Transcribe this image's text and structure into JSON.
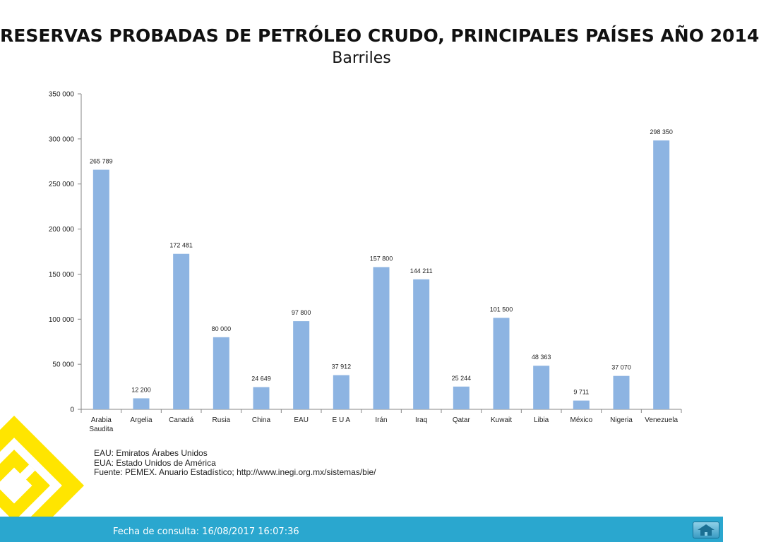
{
  "header": {
    "title": "RESERVAS PROBADAS DE PETRÓLEO CRUDO, PRINCIPALES PAÍSES AÑO 2014",
    "subtitle": "Barriles"
  },
  "chart_data": {
    "type": "bar",
    "categories": [
      "Arabia Saudita",
      "Argelia",
      "Canadá",
      "Rusia",
      "China",
      "EAU",
      "E U A",
      "Irán",
      "Iraq",
      "Qatar",
      "Kuwait",
      "Libia",
      "México",
      "Nigeria",
      "Venezuela"
    ],
    "category_lines": [
      [
        "Arabia",
        "Saudita"
      ],
      [
        "Argelia"
      ],
      [
        "Canadá"
      ],
      [
        "Rusia"
      ],
      [
        "China"
      ],
      [
        "EAU"
      ],
      [
        "E U A"
      ],
      [
        "Irán"
      ],
      [
        "Iraq"
      ],
      [
        "Qatar"
      ],
      [
        "Kuwait"
      ],
      [
        "Libia"
      ],
      [
        "México"
      ],
      [
        "Nigeria"
      ],
      [
        "Venezuela"
      ]
    ],
    "values": [
      265789,
      12200,
      172481,
      80000,
      24649,
      97800,
      37912,
      157800,
      144211,
      25244,
      101500,
      48363,
      9711,
      37070,
      298350
    ],
    "value_labels": [
      "265 789",
      "12 200",
      "172 481",
      "80 000",
      "24 649",
      "97 800",
      "37 912",
      "157 800",
      "144 211",
      "25 244",
      "101 500",
      "48 363",
      "9 711",
      "37 070",
      "298 350"
    ],
    "yticks": [
      0,
      50000,
      100000,
      150000,
      200000,
      250000,
      300000,
      350000
    ],
    "ytick_labels": [
      "0",
      "50 000",
      "100 000",
      "150 000",
      "200 000",
      "250 000",
      "300 000",
      "350 000"
    ],
    "ylim": [
      0,
      350000
    ],
    "xlabel": "",
    "ylabel": "",
    "grid": false,
    "bar_color": "#8db4e2"
  },
  "notes": [
    "EAU: Emiratos Árabes Unidos",
    "EUA: Estado Unidos de América",
    "Fuente: PEMEX. Anuario Estadístico; http://www.inegi.org.mx/sistemas/bie/"
  ],
  "footer": {
    "text": "Fecha de consulta: 16/08/2017 16:07:36",
    "home_icon": "home-icon"
  },
  "colors": {
    "footer_bg": "#2aa7cf",
    "logo_yellow": "#ffe500"
  }
}
